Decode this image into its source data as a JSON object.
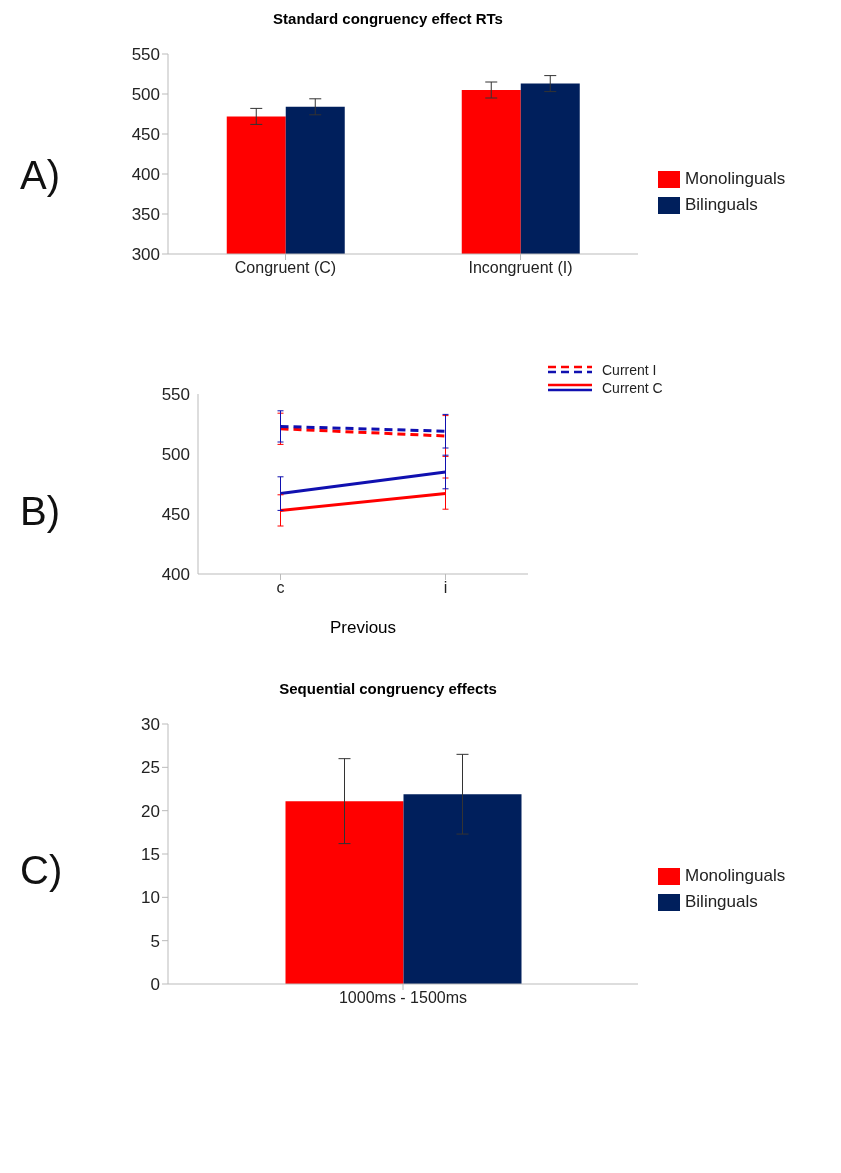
{
  "chart_data": [
    {
      "type": "bar",
      "title": "Standard congruency effect RTs",
      "annotations": [
        "A)"
      ],
      "categories": [
        "Congruent (C)",
        "Incongruent (I)"
      ],
      "series": [
        {
          "name": "Monolinguals",
          "color": "#ff0000",
          "values": [
            472,
            505
          ],
          "errors": [
            10,
            10
          ]
        },
        {
          "name": "Bilinguals",
          "color": "#001f5c",
          "values": [
            484,
            513
          ],
          "errors": [
            10,
            10
          ]
        }
      ],
      "ylim": [
        300,
        550
      ],
      "yticks": [
        300,
        350,
        400,
        450,
        500,
        550
      ],
      "legend": "right"
    },
    {
      "type": "line",
      "annotations": [
        "B)"
      ],
      "xlabel": "Previous",
      "categories": [
        "c",
        "i"
      ],
      "series": [
        {
          "name": "Current I",
          "color": "#ff0000",
          "line_style": "dashed",
          "values": [
            521,
            515
          ],
          "errors": [
            13,
            17
          ]
        },
        {
          "color": "#1010b0",
          "line_style": "dashed",
          "values": [
            523,
            519
          ],
          "errors": [
            13,
            14
          ]
        },
        {
          "name": "Current C",
          "color": "#ff0000",
          "line_style": "solid",
          "values": [
            453,
            467
          ],
          "errors": [
            13,
            13
          ]
        },
        {
          "color": "#1010b0",
          "line_style": "solid",
          "values": [
            467,
            485
          ],
          "errors": [
            14,
            14
          ]
        }
      ],
      "ylim": [
        400,
        550
      ],
      "yticks": [
        400,
        450,
        500,
        550
      ],
      "legend": "top right",
      "marker": "none"
    },
    {
      "type": "bar",
      "title": "Sequential congruency effects",
      "annotations": [
        "C)"
      ],
      "categories": [
        "1000ms - 1500ms"
      ],
      "series": [
        {
          "name": "Monolinguals",
          "color": "#ff0000",
          "values": [
            21.1
          ],
          "errors": [
            4.9
          ]
        },
        {
          "name": "Bilinguals",
          "color": "#001f5c",
          "values": [
            21.9
          ],
          "errors": [
            4.6
          ]
        }
      ],
      "ylim": [
        0,
        30
      ],
      "yticks": [
        0,
        5,
        10,
        15,
        20,
        25,
        30
      ],
      "legend": "right"
    }
  ]
}
